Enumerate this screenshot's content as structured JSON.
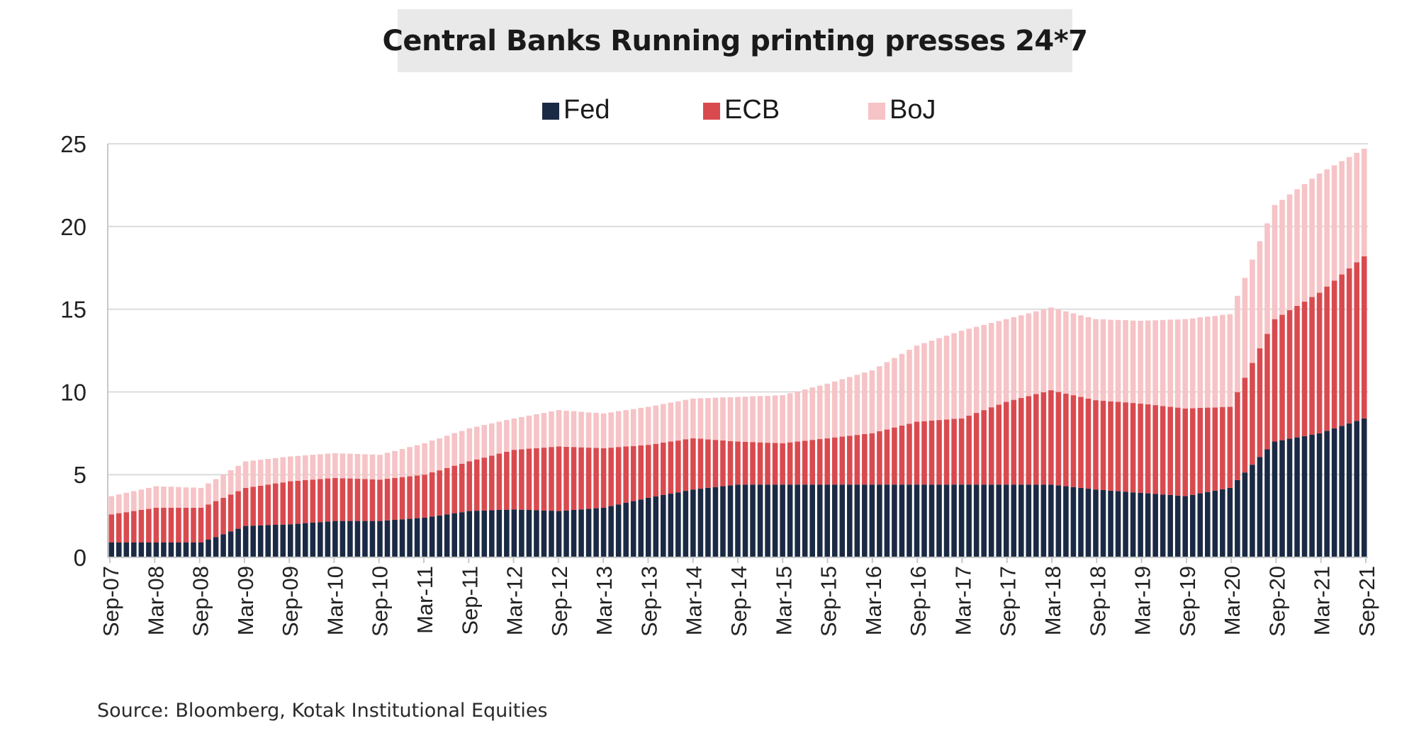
{
  "title": "Central Banks Running printing presses 24*7",
  "source": "Source: Bloomberg, Kotak Institutional Equities",
  "chart_data": {
    "type": "bar",
    "stacked": true,
    "title": "Central Banks Running printing presses 24*7",
    "xlabel": "",
    "ylabel": "",
    "ylim": [
      0,
      25
    ],
    "yticks": [
      0,
      5,
      10,
      15,
      20,
      25
    ],
    "grid": true,
    "legend_position": "top-center",
    "x_tick_labels": [
      "Sep-07",
      "Mar-08",
      "Sep-08",
      "Mar-09",
      "Sep-09",
      "Mar-10",
      "Sep-10",
      "Mar-11",
      "Sep-11",
      "Mar-12",
      "Sep-12",
      "Mar-13",
      "Sep-13",
      "Mar-14",
      "Sep-14",
      "Mar-15",
      "Sep-15",
      "Mar-16",
      "Sep-16",
      "Mar-17",
      "Sep-17",
      "Mar-18",
      "Sep-18",
      "Mar-19",
      "Sep-19",
      "Mar-20",
      "Sep-20",
      "Mar-21",
      "Sep-21"
    ],
    "period_labels": [
      "Sep-07",
      "Mar-08",
      "Sep-08",
      "Mar-09",
      "Sep-09",
      "Mar-10",
      "Sep-10",
      "Mar-11",
      "Sep-11",
      "Mar-12",
      "Sep-12",
      "Mar-13",
      "Sep-13",
      "Mar-14",
      "Sep-14",
      "Mar-15",
      "Sep-15",
      "Mar-16",
      "Sep-16",
      "Mar-17",
      "Sep-17",
      "Mar-18",
      "Sep-18",
      "Mar-19",
      "Sep-19",
      "Mar-20",
      "Sep-20",
      "Mar-21",
      "Sep-21"
    ],
    "bars_per_period": 6,
    "series": [
      {
        "name": "Fed",
        "color": "#1b2a44",
        "anchors": [
          0.9,
          0.9,
          0.9,
          1.9,
          2.0,
          2.2,
          2.2,
          2.4,
          2.8,
          2.9,
          2.8,
          3.0,
          3.6,
          4.1,
          4.4,
          4.4,
          4.4,
          4.4,
          4.4,
          4.4,
          4.4,
          4.4,
          4.1,
          3.9,
          3.7,
          4.2,
          7.0,
          7.5,
          8.4
        ],
        "values": []
      },
      {
        "name": "ECB",
        "color": "#d94a4f",
        "anchors": [
          1.7,
          2.1,
          2.1,
          2.3,
          2.6,
          2.6,
          2.5,
          2.6,
          3.0,
          3.6,
          3.9,
          3.6,
          3.2,
          3.1,
          2.6,
          2.5,
          2.8,
          3.1,
          3.8,
          4.0,
          5.0,
          5.7,
          5.4,
          5.4,
          5.3,
          4.9,
          7.4,
          8.5,
          9.8
        ],
        "values": []
      },
      {
        "name": "BoJ",
        "color": "#f6c3c6",
        "anchors": [
          1.1,
          1.3,
          1.2,
          1.6,
          1.5,
          1.5,
          1.5,
          1.9,
          2.0,
          1.9,
          2.2,
          2.1,
          2.3,
          2.4,
          2.7,
          2.9,
          3.3,
          3.8,
          4.6,
          5.3,
          5.0,
          5.0,
          4.9,
          5.0,
          5.4,
          5.6,
          6.9,
          7.2,
          6.5
        ],
        "values": []
      }
    ]
  }
}
